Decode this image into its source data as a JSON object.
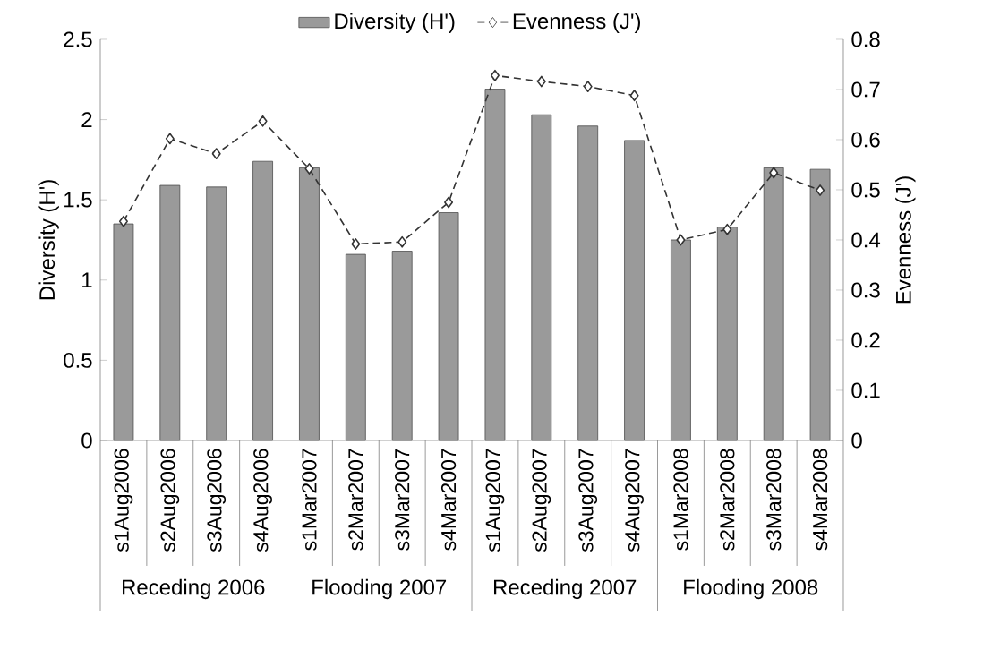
{
  "chart_data": {
    "type": "bar",
    "categories": [
      "s1Aug2006",
      "s2Aug2006",
      "s3Aug2006",
      "s4Aug2006",
      "s1Mar2007",
      "s2Mar2007",
      "s3Mar2007",
      "s4Mar2007",
      "s1Aug2007",
      "s2Aug2007",
      "s3Aug2007",
      "s4Aug2007",
      "s1Mar2008",
      "s2Mar2008",
      "s3Mar2008",
      "s4Mar2008"
    ],
    "annotations": [
      "Receding 2006",
      "Flooding 2007",
      "Receding 2007",
      "Flooding 2008"
    ],
    "ylabel": "Diversity (H')",
    "y2label": "Evenness (J')",
    "ylim": [
      0,
      2.5
    ],
    "yticks": [
      0,
      0.5,
      1,
      1.5,
      2,
      2.5
    ],
    "y2lim": [
      0,
      0.8
    ],
    "y2ticks": [
      0,
      0.1,
      0.2,
      0.3,
      0.4,
      0.5,
      0.6,
      0.7,
      0.8
    ],
    "legend": "top",
    "series": [
      {
        "name": "Diversity (H')",
        "color": "#9a9a9a",
        "values": [
          1.35,
          1.59,
          1.58,
          1.74,
          1.7,
          1.16,
          1.18,
          1.42,
          2.19,
          2.03,
          1.96,
          1.87,
          1.25,
          1.33,
          1.7,
          1.69
        ]
      },
      {
        "name": "Evenness (J')",
        "type": "line",
        "axis": "y2",
        "color": "#333333",
        "marker": "diamond",
        "line_style": "dashed",
        "values": [
          0.437,
          0.602,
          0.572,
          0.637,
          0.542,
          0.392,
          0.396,
          0.475,
          0.728,
          0.716,
          0.706,
          0.688,
          0.4,
          0.421,
          0.534,
          0.499
        ]
      }
    ]
  }
}
